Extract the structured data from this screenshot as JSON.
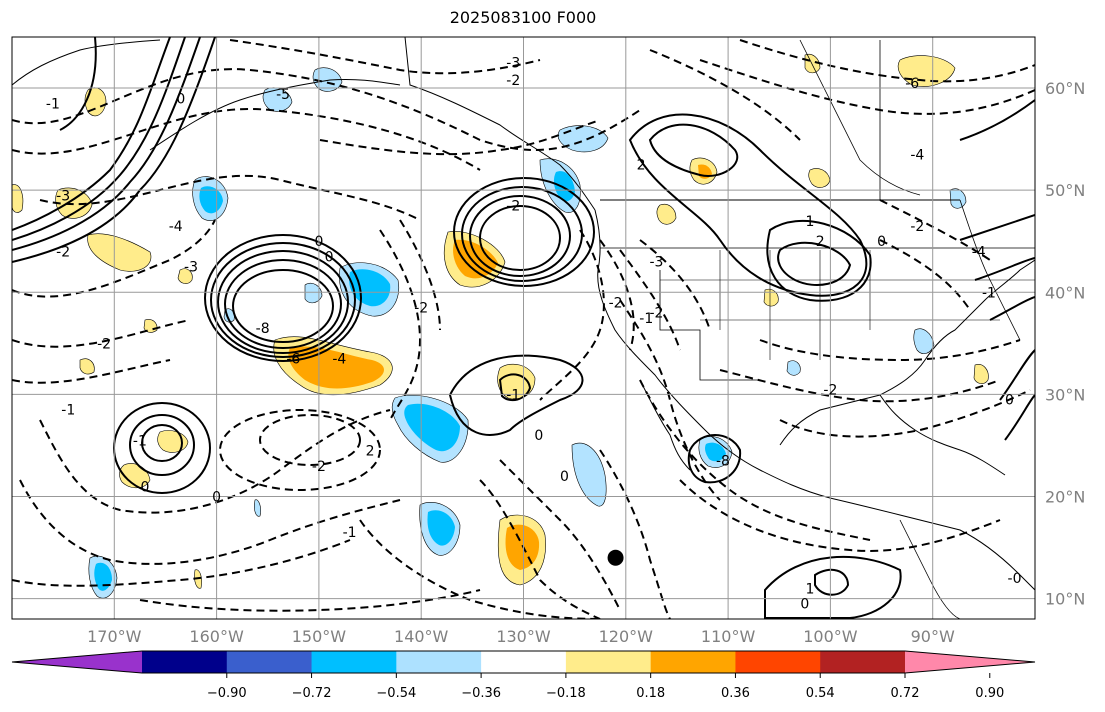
{
  "title": "2025083100 F000",
  "map": {
    "lon_range": [
      -180,
      -80
    ],
    "lat_range": [
      8,
      65
    ],
    "lat_labels": [
      "60°N",
      "50°N",
      "40°N",
      "30°N",
      "20°N",
      "10°N"
    ],
    "lat_values": [
      60,
      50,
      40,
      30,
      20,
      10
    ],
    "lon_labels": [
      "170°W",
      "160°W",
      "150°W",
      "140°W",
      "130°W",
      "120°W",
      "110°W",
      "100°W",
      "90°W"
    ],
    "lon_values": [
      -170,
      -160,
      -150,
      -140,
      -130,
      -120,
      -110,
      -100,
      -90
    ],
    "contour_labels": [
      {
        "text": "-3",
        "lon": -131,
        "lat": 62.5
      },
      {
        "text": "-2",
        "lon": -131,
        "lat": 60.8
      },
      {
        "text": "0",
        "lon": -163.5,
        "lat": 59
      },
      {
        "text": "-5",
        "lon": -153.5,
        "lat": 59.4
      },
      {
        "text": "-1",
        "lon": -176,
        "lat": 58.5
      },
      {
        "text": "-3",
        "lon": -175,
        "lat": 49.5
      },
      {
        "text": "-4",
        "lon": -164,
        "lat": 46.5
      },
      {
        "text": "-2",
        "lon": -175,
        "lat": 44
      },
      {
        "text": "-3",
        "lon": -162.5,
        "lat": 42.5
      },
      {
        "text": "-2",
        "lon": -171,
        "lat": 35
      },
      {
        "text": "-1",
        "lon": -174.5,
        "lat": 28.5
      },
      {
        "text": "0",
        "lon": -149,
        "lat": 43.5
      },
      {
        "text": "-8",
        "lon": -155.5,
        "lat": 36.5
      },
      {
        "text": "-6",
        "lon": -152.5,
        "lat": 33.5
      },
      {
        "text": "-4",
        "lon": -148,
        "lat": 33.5
      },
      {
        "text": "0",
        "lon": -150,
        "lat": 45
      },
      {
        "text": "-2",
        "lon": -140,
        "lat": 38.5
      },
      {
        "text": "-2",
        "lon": -131,
        "lat": 48.5
      },
      {
        "text": "-1",
        "lon": -131,
        "lat": 30
      },
      {
        "text": "0",
        "lon": -128.5,
        "lat": 26
      },
      {
        "text": "-2",
        "lon": -150,
        "lat": 23
      },
      {
        "text": "2",
        "lon": -145,
        "lat": 24.5
      },
      {
        "text": "-1",
        "lon": -167.5,
        "lat": 25.5
      },
      {
        "text": "0",
        "lon": -167,
        "lat": 21
      },
      {
        "text": "0",
        "lon": -160,
        "lat": 20
      },
      {
        "text": "-1",
        "lon": -147,
        "lat": 16.5
      },
      {
        "text": "0",
        "lon": -126,
        "lat": 22
      },
      {
        "text": "2",
        "lon": -118.5,
        "lat": 52.5
      },
      {
        "text": "-3",
        "lon": -117,
        "lat": 43
      },
      {
        "text": "-2",
        "lon": -121,
        "lat": 39
      },
      {
        "text": "-2",
        "lon": -117,
        "lat": 38
      },
      {
        "text": "-1",
        "lon": -118,
        "lat": 37.5
      },
      {
        "text": "1",
        "lon": -102,
        "lat": 47
      },
      {
        "text": "2",
        "lon": -101,
        "lat": 45
      },
      {
        "text": "0",
        "lon": -95,
        "lat": 45
      },
      {
        "text": "-2",
        "lon": -100,
        "lat": 30.5
      },
      {
        "text": "-8",
        "lon": -110.5,
        "lat": 23.5
      },
      {
        "text": "1",
        "lon": -102,
        "lat": 11
      },
      {
        "text": "0",
        "lon": -102.5,
        "lat": 9.5
      },
      {
        "text": "-4",
        "lon": -91.5,
        "lat": 53.5
      },
      {
        "text": "-2",
        "lon": -91.5,
        "lat": 46.5
      },
      {
        "text": "-4",
        "lon": -85.5,
        "lat": 44
      },
      {
        "text": "-1",
        "lon": -84.5,
        "lat": 40
      },
      {
        "text": "0",
        "lon": -82.5,
        "lat": 29.5
      },
      {
        "text": "-6",
        "lon": -92,
        "lat": 60.5
      },
      {
        "text": "-0",
        "lon": -82,
        "lat": 12
      }
    ],
    "marker": {
      "lon": -121,
      "lat": 14,
      "color": "#000000"
    }
  },
  "colorbar": {
    "ticks": [
      "−0.90",
      "−0.72",
      "−0.54",
      "−0.36",
      "−0.18",
      "0.18",
      "0.36",
      "0.54",
      "0.72",
      "0.90"
    ],
    "colors": [
      "#9932CC",
      "#00008B",
      "#3A5FCD",
      "#00BFFF",
      "#ADE1FF",
      "#FFFFFF",
      "#FFEC8B",
      "#FFA500",
      "#FF4500",
      "#B22222",
      "#FF88AA"
    ]
  },
  "shading_colors": {
    "light_blue": "#B3E3FF",
    "blue": "#00BFFF",
    "light_yellow": "#FFEC8B",
    "orange": "#FFA500"
  }
}
